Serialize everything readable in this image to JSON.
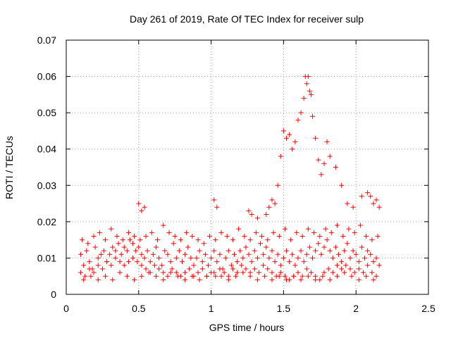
{
  "chart_data": {
    "type": "scatter",
    "title": "Day 261 of 2019, Rate Of TEC Index for receiver sulp",
    "xlabel": "GPS time / hours",
    "ylabel": "ROTI / TECUs",
    "xlim": [
      0,
      2.5
    ],
    "ylim": [
      0,
      0.07
    ],
    "xticks": [
      0,
      0.5,
      1,
      1.5,
      2,
      2.5
    ],
    "xtick_labels": [
      "0",
      "0.5",
      "1",
      "1.5",
      "2",
      "2.5"
    ],
    "yticks": [
      0,
      0.01,
      0.02,
      0.03,
      0.04,
      0.05,
      0.06,
      0.07
    ],
    "ytick_labels": [
      "0",
      "0.01",
      "0.02",
      "0.03",
      "0.04",
      "0.05",
      "0.06",
      "0.07"
    ],
    "grid": true,
    "marker": "+",
    "color": "#ff0000",
    "series": [
      {
        "name": "ROTI",
        "x": [
          0.1,
          0.12,
          0.14,
          0.16,
          0.18,
          0.2,
          0.22,
          0.24,
          0.26,
          0.28,
          0.3,
          0.32,
          0.34,
          0.36,
          0.38,
          0.4,
          0.42,
          0.44,
          0.46,
          0.48,
          0.5,
          0.52,
          0.54,
          0.56,
          0.58,
          0.6,
          0.62,
          0.64,
          0.66,
          0.68,
          0.7,
          0.72,
          0.74,
          0.76,
          0.78,
          0.8,
          0.82,
          0.84,
          0.86,
          0.88,
          0.9,
          0.92,
          0.94,
          0.96,
          0.98,
          1.0,
          1.02,
          1.04,
          1.06,
          1.08,
          1.1,
          1.12,
          1.14,
          1.16,
          1.18,
          1.2,
          1.22,
          1.24,
          1.26,
          1.28,
          1.3,
          1.32,
          1.34,
          1.36,
          1.38,
          1.4,
          1.42,
          1.44,
          1.46,
          1.48,
          1.5,
          1.52,
          1.54,
          1.56,
          1.58,
          1.6,
          1.62,
          1.64,
          1.66,
          1.68,
          1.7,
          1.72,
          1.74,
          1.76,
          1.78,
          1.8,
          1.82,
          1.84,
          1.86,
          1.88,
          1.9,
          1.92,
          1.94,
          1.96,
          1.98,
          2.0,
          2.02,
          2.04,
          2.06,
          2.08,
          2.1,
          2.12,
          2.14,
          2.16,
          0.1,
          0.13,
          0.16,
          0.19,
          0.22,
          0.25,
          0.28,
          0.31,
          0.34,
          0.37,
          0.4,
          0.43,
          0.46,
          0.49,
          0.52,
          0.55,
          0.58,
          0.61,
          0.64,
          0.67,
          0.7,
          0.73,
          0.76,
          0.79,
          0.82,
          0.85,
          0.88,
          0.91,
          0.94,
          0.97,
          1.0,
          1.03,
          1.06,
          1.09,
          1.12,
          1.15,
          1.18,
          1.21,
          1.24,
          1.27,
          1.3,
          1.33,
          1.36,
          1.39,
          1.42,
          1.45,
          1.48,
          1.51,
          1.54,
          1.57,
          1.6,
          1.63,
          1.66,
          1.69,
          1.72,
          1.75,
          1.78,
          1.81,
          1.84,
          1.87,
          1.9,
          1.93,
          1.96,
          1.99,
          2.02,
          2.05,
          2.08,
          2.11,
          2.14,
          0.11,
          0.15,
          0.19,
          0.23,
          0.27,
          0.31,
          0.35,
          0.39,
          0.43,
          0.47,
          0.51,
          0.55,
          0.59,
          0.63,
          0.67,
          0.71,
          0.75,
          0.79,
          0.83,
          0.87,
          0.91,
          0.95,
          0.99,
          1.03,
          1.07,
          1.11,
          1.15,
          1.19,
          1.23,
          1.27,
          1.31,
          1.35,
          1.39,
          1.43,
          1.47,
          1.51,
          1.55,
          1.59,
          1.63,
          1.67,
          1.71,
          1.75,
          1.79,
          1.83,
          1.87,
          1.91,
          1.95,
          1.99,
          2.03,
          2.07,
          2.11,
          2.15,
          0.12,
          0.17,
          0.22,
          0.27,
          0.32,
          0.37,
          0.42,
          0.47,
          0.52,
          0.57,
          0.62,
          0.67,
          0.72,
          0.77,
          0.82,
          0.87,
          0.92,
          0.97,
          1.02,
          1.07,
          1.12,
          1.17,
          1.22,
          1.27,
          1.32,
          1.37,
          1.42,
          1.47,
          1.52,
          1.57,
          1.62,
          1.67,
          1.72,
          1.77,
          1.82,
          1.87,
          1.92,
          1.97,
          2.02,
          2.07,
          2.12,
          0.5,
          0.52,
          0.54,
          1.02,
          1.04,
          1.26,
          1.28,
          1.32,
          1.38,
          1.4,
          1.42,
          1.44,
          1.46,
          1.48,
          1.5,
          1.52,
          1.54,
          1.56,
          1.58,
          1.6,
          1.62,
          1.64,
          1.65,
          1.66,
          1.67,
          1.68,
          1.69,
          1.7,
          1.72,
          1.74,
          1.76,
          1.78,
          1.8,
          1.82,
          1.86,
          1.9,
          1.94,
          1.98,
          2.04,
          2.08,
          2.1,
          2.12,
          2.14,
          2.16
        ],
        "y": [
          0.011,
          0.008,
          0.012,
          0.009,
          0.007,
          0.013,
          0.01,
          0.011,
          0.012,
          0.009,
          0.011,
          0.013,
          0.012,
          0.014,
          0.011,
          0.013,
          0.012,
          0.015,
          0.014,
          0.012,
          0.013,
          0.011,
          0.01,
          0.012,
          0.009,
          0.011,
          0.013,
          0.01,
          0.008,
          0.012,
          0.011,
          0.009,
          0.014,
          0.01,
          0.012,
          0.009,
          0.011,
          0.013,
          0.01,
          0.008,
          0.01,
          0.012,
          0.009,
          0.011,
          0.008,
          0.01,
          0.012,
          0.009,
          0.011,
          0.007,
          0.01,
          0.012,
          0.008,
          0.011,
          0.009,
          0.012,
          0.01,
          0.013,
          0.011,
          0.009,
          0.012,
          0.01,
          0.014,
          0.011,
          0.013,
          0.01,
          0.012,
          0.009,
          0.011,
          0.008,
          0.01,
          0.012,
          0.009,
          0.011,
          0.008,
          0.01,
          0.012,
          0.009,
          0.011,
          0.013,
          0.01,
          0.012,
          0.014,
          0.011,
          0.013,
          0.015,
          0.012,
          0.01,
          0.013,
          0.011,
          0.009,
          0.012,
          0.014,
          0.01,
          0.012,
          0.011,
          0.009,
          0.013,
          0.01,
          0.012,
          0.011,
          0.009,
          0.01,
          0.008,
          0.006,
          0.005,
          0.007,
          0.006,
          0.008,
          0.007,
          0.009,
          0.008,
          0.01,
          0.009,
          0.008,
          0.009,
          0.01,
          0.009,
          0.008,
          0.007,
          0.006,
          0.008,
          0.007,
          0.006,
          0.005,
          0.007,
          0.006,
          0.005,
          0.006,
          0.007,
          0.005,
          0.006,
          0.007,
          0.005,
          0.006,
          0.005,
          0.007,
          0.006,
          0.005,
          0.007,
          0.006,
          0.008,
          0.007,
          0.006,
          0.007,
          0.006,
          0.008,
          0.007,
          0.006,
          0.005,
          0.006,
          0.005,
          0.004,
          0.005,
          0.006,
          0.005,
          0.007,
          0.006,
          0.005,
          0.004,
          0.006,
          0.007,
          0.006,
          0.008,
          0.007,
          0.008,
          0.007,
          0.006,
          0.007,
          0.006,
          0.008,
          0.006,
          0.005,
          0.015,
          0.014,
          0.016,
          0.017,
          0.015,
          0.018,
          0.016,
          0.015,
          0.017,
          0.016,
          0.015,
          0.016,
          0.017,
          0.015,
          0.019,
          0.017,
          0.016,
          0.015,
          0.017,
          0.016,
          0.015,
          0.014,
          0.016,
          0.015,
          0.017,
          0.016,
          0.015,
          0.018,
          0.016,
          0.015,
          0.017,
          0.016,
          0.015,
          0.017,
          0.016,
          0.018,
          0.015,
          0.017,
          0.016,
          0.018,
          0.017,
          0.016,
          0.018,
          0.017,
          0.019,
          0.016,
          0.018,
          0.017,
          0.019,
          0.016,
          0.015,
          0.016,
          0.004,
          0.005,
          0.004,
          0.005,
          0.004,
          0.006,
          0.005,
          0.004,
          0.005,
          0.006,
          0.005,
          0.004,
          0.006,
          0.005,
          0.004,
          0.005,
          0.004,
          0.005,
          0.006,
          0.005,
          0.004,
          0.005,
          0.006,
          0.005,
          0.004,
          0.005,
          0.004,
          0.005,
          0.004,
          0.005,
          0.004,
          0.005,
          0.004,
          0.005,
          0.004,
          0.005,
          0.006,
          0.005,
          0.004,
          0.005,
          0.004,
          0.025,
          0.023,
          0.024,
          0.026,
          0.024,
          0.023,
          0.022,
          0.021,
          0.022,
          0.024,
          0.026,
          0.025,
          0.03,
          0.038,
          0.045,
          0.043,
          0.044,
          0.04,
          0.042,
          0.048,
          0.05,
          0.054,
          0.06,
          0.058,
          0.06,
          0.056,
          0.055,
          0.049,
          0.043,
          0.037,
          0.033,
          0.036,
          0.042,
          0.038,
          0.035,
          0.03,
          0.025,
          0.024,
          0.027,
          0.028,
          0.027,
          0.025,
          0.026,
          0.024
        ]
      }
    ]
  }
}
